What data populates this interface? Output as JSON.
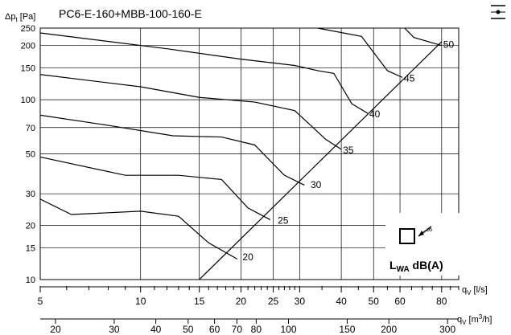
{
  "chart_data": {
    "type": "line",
    "title": "PC6-E-160+MBB-100-160-E",
    "ylabel_main": "Δp",
    "ylabel_sub": "t",
    "ylabel_unit": " [Pa]",
    "y_scale": "log",
    "x_scale": "log",
    "ylim": [
      10,
      250
    ],
    "xlim": [
      5,
      90
    ],
    "y_ticks": [
      10,
      15,
      20,
      30,
      50,
      70,
      100,
      150,
      200,
      250
    ],
    "x_ticks_labeled": [
      5,
      10,
      15,
      20,
      25,
      30,
      40,
      50,
      60,
      80
    ],
    "x_minor_ticks": [
      6,
      7,
      8,
      9,
      11,
      12,
      13,
      14,
      16,
      17,
      18,
      19,
      21,
      22,
      23,
      24,
      26,
      27,
      28,
      29,
      35,
      45,
      55,
      65,
      70,
      75,
      85,
      90
    ],
    "x_grid": [
      5,
      10,
      15,
      20,
      25,
      30,
      40,
      50,
      60,
      80
    ],
    "x2_ticks": [
      20,
      30,
      40,
      50,
      60,
      70,
      80,
      100,
      150,
      200,
      300
    ],
    "x2_ticks_labeled": [
      20,
      30,
      40,
      50,
      60,
      70,
      80,
      100,
      150,
      200,
      300
    ],
    "xlabel_main": "q",
    "xlabel_sub": "V",
    "xlabel_unit": " [l/s]",
    "x2label_main": "q",
    "x2label_sub": "V",
    "x2label_unit": " [m",
    "x2label_sup": "3",
    "x2label_end": "/h]",
    "grid": true,
    "series": [
      {
        "label": "20",
        "label_at": [
          20,
          13.5
        ],
        "points": [
          [
            5,
            28
          ],
          [
            6.2,
            23
          ],
          [
            10,
            24
          ],
          [
            13,
            22.5
          ],
          [
            16,
            16
          ],
          [
            19.5,
            13
          ]
        ]
      },
      {
        "label": "25",
        "label_at": [
          25.5,
          21.5
        ],
        "points": [
          [
            5,
            48
          ],
          [
            9,
            38
          ],
          [
            13,
            38
          ],
          [
            17.5,
            36
          ],
          [
            21,
            25
          ],
          [
            24.5,
            21.5
          ]
        ]
      },
      {
        "label": "30",
        "label_at": [
          32,
          34
        ],
        "points": [
          [
            5,
            82
          ],
          [
            8,
            72
          ],
          [
            12.5,
            63
          ],
          [
            17.5,
            62
          ],
          [
            22,
            56
          ],
          [
            27,
            38
          ],
          [
            31,
            33.5
          ]
        ]
      },
      {
        "label": "35",
        "label_at": [
          40,
          53
        ],
        "points": [
          [
            5,
            138
          ],
          [
            10,
            118
          ],
          [
            15,
            103
          ],
          [
            22,
            97
          ],
          [
            29,
            87
          ],
          [
            36,
            60
          ],
          [
            40,
            53
          ]
        ]
      },
      {
        "label": "40",
        "label_at": [
          48,
          84
        ],
        "points": [
          [
            5,
            235
          ],
          [
            12,
            192
          ],
          [
            20,
            168
          ],
          [
            29,
            155
          ],
          [
            34,
            145
          ],
          [
            38,
            140
          ],
          [
            43,
            95
          ],
          [
            48,
            84
          ]
        ]
      },
      {
        "label": "45",
        "label_at": [
          61,
          133
        ],
        "points": [
          [
            34,
            255
          ],
          [
            46,
            225
          ],
          [
            55,
            145
          ],
          [
            61,
            133
          ]
        ]
      },
      {
        "label": "50",
        "label_at": [
          80,
          205
        ],
        "points": [
          [
            62,
            255
          ],
          [
            66,
            222
          ],
          [
            80,
            200
          ]
        ]
      }
    ],
    "system_line": [
      [
        15,
        10
      ],
      [
        80,
        210
      ]
    ],
    "legend_text_main": "L",
    "legend_text_sub": "WA",
    "legend_text_end": " dB(A)",
    "legend_icon": "speaker-infinity-icon",
    "menu_icon": "menu-line-dot-icon"
  }
}
